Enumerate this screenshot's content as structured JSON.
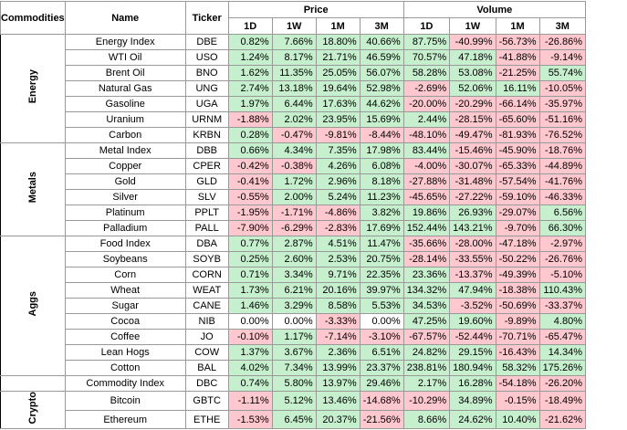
{
  "header": {
    "commodities": "Commodities",
    "name": "Name",
    "ticker": "Ticker",
    "price": "Price",
    "volume": "Volume",
    "price_periods": [
      "1D",
      "1W",
      "1M",
      "3M"
    ],
    "volume_periods": [
      "1D",
      "1W",
      "1M",
      "3M"
    ]
  },
  "groups": [
    {
      "label": "Energy",
      "rows": [
        {
          "name": "Energy Index",
          "ticker": "DBE",
          "price": [
            "0.82%",
            "7.66%",
            "18.80%",
            "40.66%"
          ],
          "volume": [
            "87.75%",
            "-40.99%",
            "-56.73%",
            "-26.86%"
          ]
        },
        {
          "name": "WTI Oil",
          "ticker": "USO",
          "price": [
            "1.24%",
            "8.17%",
            "21.71%",
            "46.59%"
          ],
          "volume": [
            "70.57%",
            "47.18%",
            "-41.88%",
            "-9.14%"
          ]
        },
        {
          "name": "Brent Oil",
          "ticker": "BNO",
          "price": [
            "1.62%",
            "11.35%",
            "25.05%",
            "56.07%"
          ],
          "volume": [
            "58.28%",
            "53.08%",
            "-21.25%",
            "55.74%"
          ]
        },
        {
          "name": "Natural Gas",
          "ticker": "UNG",
          "price": [
            "2.74%",
            "13.18%",
            "19.64%",
            "52.98%"
          ],
          "volume": [
            "-2.69%",
            "52.06%",
            "16.11%",
            "-10.05%"
          ]
        },
        {
          "name": "Gasoline",
          "ticker": "UGA",
          "price": [
            "1.97%",
            "6.44%",
            "17.63%",
            "44.62%"
          ],
          "volume": [
            "-20.00%",
            "-20.29%",
            "-66.14%",
            "-35.97%"
          ]
        },
        {
          "name": "Uranium",
          "ticker": "URNM",
          "price": [
            "-1.88%",
            "2.02%",
            "23.95%",
            "15.69%"
          ],
          "volume": [
            "2.44%",
            "-28.15%",
            "-65.60%",
            "-51.16%"
          ]
        },
        {
          "name": "Carbon",
          "ticker": "KRBN",
          "price": [
            "0.28%",
            "-0.47%",
            "-9.81%",
            "-8.44%"
          ],
          "volume": [
            "-48.10%",
            "-49.47%",
            "-81.93%",
            "-76.52%"
          ]
        }
      ]
    },
    {
      "label": "Metals",
      "rows": [
        {
          "name": "Metal Index",
          "ticker": "DBB",
          "price": [
            "0.66%",
            "4.34%",
            "7.35%",
            "17.98%"
          ],
          "volume": [
            "83.44%",
            "-15.46%",
            "-45.90%",
            "-18.76%"
          ]
        },
        {
          "name": "Copper",
          "ticker": "CPER",
          "price": [
            "-0.42%",
            "-0.38%",
            "4.26%",
            "6.08%"
          ],
          "volume": [
            "-4.00%",
            "-30.07%",
            "-65.33%",
            "-44.89%"
          ]
        },
        {
          "name": "Gold",
          "ticker": "GLD",
          "price": [
            "-0.41%",
            "1.72%",
            "2.96%",
            "8.18%"
          ],
          "volume": [
            "-27.88%",
            "-31.48%",
            "-57.54%",
            "-41.76%"
          ]
        },
        {
          "name": "Silver",
          "ticker": "SLV",
          "price": [
            "-0.55%",
            "2.00%",
            "5.24%",
            "11.23%"
          ],
          "volume": [
            "-45.65%",
            "-27.22%",
            "-59.10%",
            "-46.33%"
          ]
        },
        {
          "name": "Platinum",
          "ticker": "PPLT",
          "price": [
            "-1.95%",
            "-1.71%",
            "-4.86%",
            "3.82%"
          ],
          "volume": [
            "19.86%",
            "26.93%",
            "-29.07%",
            "6.56%"
          ]
        },
        {
          "name": "Palladium",
          "ticker": "PALL",
          "price": [
            "-7.90%",
            "-6.29%",
            "-2.83%",
            "17.69%"
          ],
          "volume": [
            "152.44%",
            "143.21%",
            "-9.70%",
            "66.30%"
          ]
        }
      ]
    },
    {
      "label": "Aggs",
      "rows": [
        {
          "name": "Food Index",
          "ticker": "DBA",
          "price": [
            "0.77%",
            "2.87%",
            "4.51%",
            "11.47%"
          ],
          "volume": [
            "-35.66%",
            "-28.00%",
            "-47.18%",
            "-2.97%"
          ]
        },
        {
          "name": "Soybeans",
          "ticker": "SOYB",
          "price": [
            "0.25%",
            "2.60%",
            "2.53%",
            "20.75%"
          ],
          "volume": [
            "-28.14%",
            "-33.55%",
            "-50.22%",
            "-26.76%"
          ]
        },
        {
          "name": "Corn",
          "ticker": "CORN",
          "price": [
            "0.71%",
            "3.34%",
            "9.71%",
            "22.35%"
          ],
          "volume": [
            "23.36%",
            "-13.37%",
            "-49.39%",
            "-5.10%"
          ]
        },
        {
          "name": "Wheat",
          "ticker": "WEAT",
          "price": [
            "1.73%",
            "6.21%",
            "20.16%",
            "39.97%"
          ],
          "volume": [
            "134.32%",
            "47.94%",
            "-18.38%",
            "110.43%"
          ]
        },
        {
          "name": "Sugar",
          "ticker": "CANE",
          "price": [
            "1.46%",
            "3.29%",
            "8.58%",
            "5.53%"
          ],
          "volume": [
            "34.53%",
            "-3.52%",
            "-50.69%",
            "-33.37%"
          ]
        },
        {
          "name": "Cocoa",
          "ticker": "NIB",
          "price": [
            "0.00%",
            "0.00%",
            "-3.33%",
            "0.00%"
          ],
          "volume": [
            "47.25%",
            "19.60%",
            "-9.89%",
            "4.80%"
          ]
        },
        {
          "name": "Coffee",
          "ticker": "JO",
          "price": [
            "-0.10%",
            "1.17%",
            "-7.14%",
            "-3.10%"
          ],
          "volume": [
            "-67.57%",
            "-52.44%",
            "-70.71%",
            "-65.47%"
          ]
        },
        {
          "name": "Lean Hogs",
          "ticker": "COW",
          "price": [
            "1.37%",
            "3.67%",
            "2.36%",
            "6.51%"
          ],
          "volume": [
            "24.82%",
            "29.15%",
            "-16.43%",
            "14.34%"
          ]
        },
        {
          "name": "Cotton",
          "ticker": "BAL",
          "price": [
            "4.02%",
            "7.34%",
            "13.99%",
            "23.37%"
          ],
          "volume": [
            "238.81%",
            "180.94%",
            "58.32%",
            "175.26%"
          ]
        }
      ]
    },
    {
      "rows": [
        {
          "name": "Commodity Index",
          "ticker": "DBC",
          "price": [
            "0.74%",
            "5.80%",
            "13.97%",
            "29.46%"
          ],
          "volume": [
            "2.17%",
            "16.28%",
            "-54.18%",
            "-26.20%"
          ]
        }
      ]
    },
    {
      "label": "Crypto",
      "rows": [
        {
          "name": "Bitcoin",
          "ticker": "GBTC",
          "price": [
            "-1.11%",
            "5.12%",
            "13.46%",
            "-14.68%"
          ],
          "volume": [
            "-10.29%",
            "34.89%",
            "-0.15%",
            "-18.49%"
          ]
        },
        {
          "name": "Ethereum",
          "ticker": "ETHE",
          "price": [
            "-1.53%",
            "6.45%",
            "20.37%",
            "-21.56%"
          ],
          "volume": [
            "8.66%",
            "24.62%",
            "10.40%",
            "-21.62%"
          ]
        }
      ]
    }
  ]
}
